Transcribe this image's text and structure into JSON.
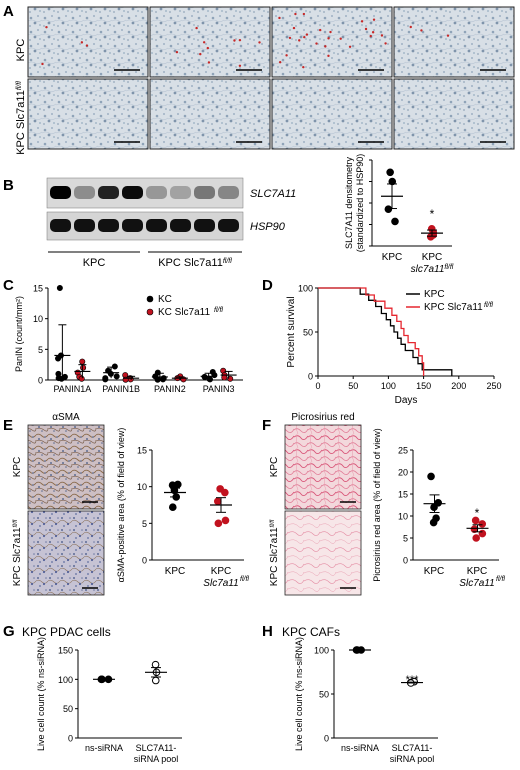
{
  "panels": {
    "A": {
      "letter": "A",
      "row_labels": [
        "KPC",
        "KPC Slc7a11"
      ],
      "row2_sup": "fl/fl",
      "dots_per_tile": [
        4,
        10,
        26,
        3
      ]
    },
    "B": {
      "letter": "B",
      "blot_labels": [
        "SLC7A11",
        "HSP90"
      ],
      "group_labels": [
        "KPC",
        "KPC Slc7a11"
      ],
      "group2_sup": "fl/fl",
      "chart_data": {
        "type": "scatter",
        "categories": [
          "KPC",
          "KPC slc7a11"
        ],
        "cat2_sup": "fl/fl",
        "ylabel_lines": [
          "SLC7A11 densitometry",
          "(standardized to HSP90)"
        ],
        "ylim": [
          0,
          1.4
        ],
        "series": [
          {
            "points": [
              1.2,
              1.05,
              0.6,
              0.4
            ],
            "mean": 0.81,
            "sem": 0.2,
            "color": "#000000",
            "fill": "#000000"
          },
          {
            "points": [
              0.28,
              0.22,
              0.15,
              0.18
            ],
            "mean": 0.21,
            "sem": 0.05,
            "color": "#c1121f",
            "fill": "#c1121f"
          }
        ],
        "annotations": [
          "*"
        ]
      }
    },
    "C": {
      "letter": "C",
      "chart_data": {
        "type": "scatter",
        "ylabel": "PanIN (count/mm²)",
        "ylim": [
          0,
          15
        ],
        "yticks": [
          "0",
          "5",
          "10",
          "15"
        ],
        "categories": [
          "PANIN1A",
          "PANIN1B",
          "PANIN2",
          "PANIN3"
        ],
        "legend": [
          {
            "label": "KC",
            "sup": "",
            "color": "#000000"
          },
          {
            "label": "KC Slc7a11",
            "sup": "fl/fl",
            "color": "#c1121f"
          }
        ],
        "series": [
          {
            "name": "KC",
            "color": "#000000",
            "groups": [
              {
                "points": [
                  15,
                  4,
                  3.5,
                  1,
                  0.5,
                  0.3,
                  0.2
                ],
                "mean": 4,
                "sem": 5
              },
              {
                "points": [
                  2.2,
                  1.5,
                  1,
                  0.6,
                  0.3,
                  0.1
                ],
                "mean": 1.2,
                "sem": 0.9
              },
              {
                "points": [
                  1.2,
                  0.6,
                  0.3,
                  0.1,
                  0.05
                ],
                "mean": 0.5,
                "sem": 0.6
              },
              {
                "points": [
                  1.3,
                  0.8,
                  0.5,
                  0.2,
                  0.1
                ],
                "mean": 0.6,
                "sem": 0.5
              }
            ]
          },
          {
            "name": "KC Slc7a11 fl/fl",
            "color": "#c1121f",
            "groups": [
              {
                "points": [
                  3,
                  2,
                  1.2,
                  0.5,
                  0.2
                ],
                "mean": 1.4,
                "sem": 1.1
              },
              {
                "points": [
                  0.8,
                  0.3,
                  0.1,
                  0.05
                ],
                "mean": 0.3,
                "sem": 0.3
              },
              {
                "points": [
                  0.6,
                  0.3,
                  0.1
                ],
                "mean": 0.3,
                "sem": 0.2
              },
              {
                "points": [
                  1.5,
                  0.8,
                  0.4,
                  0.2
                ],
                "mean": 0.8,
                "sem": 0.6
              }
            ]
          }
        ]
      }
    },
    "D": {
      "letter": "D",
      "chart_data": {
        "type": "line",
        "xlabel": "Days",
        "ylabel": "Percent survival",
        "xlim": [
          0,
          250
        ],
        "ylim": [
          0,
          100
        ],
        "xticks": [
          "0",
          "50",
          "100",
          "150",
          "200",
          "250"
        ],
        "yticks": [
          "0",
          "50",
          "100"
        ],
        "legend": [
          {
            "label": "KPC",
            "sup": "",
            "color": "#000000"
          },
          {
            "label": "KPC Slc7a11",
            "sup": "fl/fl",
            "color": "#e5262f"
          }
        ],
        "series": [
          {
            "name": "KPC",
            "color": "#000000",
            "steps": [
              [
                0,
                100
              ],
              [
                60,
                100
              ],
              [
                60,
                93
              ],
              [
                72,
                93
              ],
              [
                72,
                86
              ],
              [
                82,
                86
              ],
              [
                82,
                79
              ],
              [
                90,
                79
              ],
              [
                90,
                71
              ],
              [
                97,
                71
              ],
              [
                97,
                64
              ],
              [
                103,
                64
              ],
              [
                103,
                57
              ],
              [
                108,
                57
              ],
              [
                108,
                50
              ],
              [
                113,
                50
              ],
              [
                113,
                43
              ],
              [
                118,
                43
              ],
              [
                118,
                36
              ],
              [
                124,
                36
              ],
              [
                124,
                29
              ],
              [
                135,
                29
              ],
              [
                135,
                21
              ],
              [
                142,
                21
              ],
              [
                142,
                14
              ],
              [
                148,
                14
              ],
              [
                148,
                7
              ],
              [
                190,
                7
              ],
              [
                190,
                0
              ]
            ]
          },
          {
            "name": "KPC Slc7a11 fl/fl",
            "color": "#e5262f",
            "steps": [
              [
                0,
                100
              ],
              [
                68,
                100
              ],
              [
                68,
                92
              ],
              [
                80,
                92
              ],
              [
                80,
                85
              ],
              [
                95,
                85
              ],
              [
                95,
                77
              ],
              [
                105,
                77
              ],
              [
                105,
                69
              ],
              [
                112,
                69
              ],
              [
                112,
                62
              ],
              [
                118,
                62
              ],
              [
                118,
                54
              ],
              [
                122,
                54
              ],
              [
                122,
                46
              ],
              [
                128,
                46
              ],
              [
                128,
                38
              ],
              [
                138,
                38
              ],
              [
                138,
                31
              ],
              [
                143,
                31
              ],
              [
                143,
                23
              ],
              [
                148,
                23
              ],
              [
                148,
                15
              ],
              [
                150,
                15
              ],
              [
                150,
                0
              ]
            ]
          }
        ]
      }
    },
    "E": {
      "letter": "E",
      "image_title": "αSMA",
      "row_labels": [
        "KPC",
        "KPC Slc7a11"
      ],
      "row2_sup": "fl/fl",
      "chart_data": {
        "type": "scatter",
        "ylabel": "αSMA-positive area (% of field of view)",
        "ylim": [
          0,
          15
        ],
        "yticks": [
          "0",
          "5",
          "10",
          "15"
        ],
        "categories": [
          "KPC",
          "KPC Slc7a11"
        ],
        "cat2_sup": "fl/fl",
        "series": [
          {
            "points": [
              10.2,
              10.3,
              9.5,
              8.6,
              7.2
            ],
            "mean": 9.2,
            "sem": 0.6,
            "color": "#000000",
            "fill": "#000000"
          },
          {
            "points": [
              9.7,
              9.2,
              8,
              5.4,
              5.0
            ],
            "mean": 7.5,
            "sem": 1.0,
            "color": "#c1121f",
            "fill": "#c1121f"
          }
        ]
      }
    },
    "F": {
      "letter": "F",
      "image_title": "Picrosirius red",
      "row_labels": [
        "KPC",
        "KPC Slc7a11"
      ],
      "row2_sup": "fl/fl",
      "chart_data": {
        "type": "scatter",
        "ylabel": "Picrosirius red area (% of field of view)",
        "ylim": [
          0,
          25
        ],
        "yticks": [
          "0",
          "5",
          "10",
          "15",
          "20",
          "25"
        ],
        "categories": [
          "KPC",
          "KPC Slc7a11"
        ],
        "cat2_sup": "fl/fl",
        "series": [
          {
            "points": [
              19,
              13,
              12,
              9.5,
              8.5
            ],
            "mean": 12.8,
            "sem": 2.0,
            "color": "#000000",
            "fill": "#000000"
          },
          {
            "points": [
              9,
              8.2,
              7,
              6,
              5
            ],
            "mean": 7.2,
            "sem": 0.8,
            "color": "#c1121f",
            "fill": "#c1121f"
          }
        ],
        "annotations": [
          "*"
        ]
      }
    },
    "G": {
      "letter": "G",
      "title": "KPC PDAC cells",
      "chart_data": {
        "type": "scatter",
        "ylabel": "Live cell count (% ns-siRNA)",
        "ylim": [
          0,
          150
        ],
        "yticks": [
          "0",
          "50",
          "100",
          "150"
        ],
        "categories": [
          "ns-siRNA",
          "SLC7A11-\nsiRNA pool"
        ],
        "series": [
          {
            "points": [
              100,
              100,
              100
            ],
            "mean": 100,
            "sem": 0,
            "color": "#000000",
            "fill": "#000000"
          },
          {
            "points": [
              125,
              112,
              98
            ],
            "mean": 112,
            "sem": 8,
            "color": "#000000",
            "fill": "#ffffff"
          }
        ]
      }
    },
    "H": {
      "letter": "H",
      "title": "KPC CAFs",
      "chart_data": {
        "type": "scatter",
        "ylabel": "Live cell count (% ns-siRNA)",
        "ylim": [
          0,
          100
        ],
        "yticks": [
          "0",
          "50",
          "100"
        ],
        "categories": [
          "ns-siRNA",
          "SLC7A11-\nsiRNA pool"
        ],
        "series": [
          {
            "points": [
              100,
              100,
              100
            ],
            "mean": 100,
            "sem": 0,
            "color": "#000000",
            "fill": "#000000"
          },
          {
            "points": [
              63,
              64,
              62.5
            ],
            "mean": 63,
            "sem": 0.5,
            "color": "#000000",
            "fill": "#ffffff"
          }
        ],
        "annotations": [
          "***"
        ]
      }
    }
  }
}
